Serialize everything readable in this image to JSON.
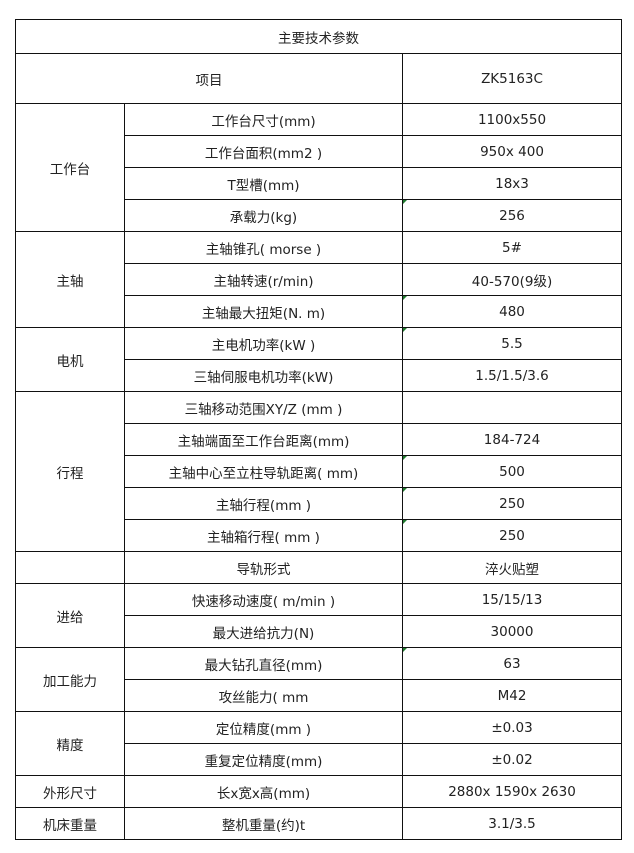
{
  "title": "主要技术参数",
  "header": {
    "item": "项目",
    "model": "ZK5163C"
  },
  "groups": [
    {
      "name": "工作台",
      "rows": [
        {
          "param": "工作台尺寸(mm)",
          "value": "1100x550"
        },
        {
          "param": "工作台面积(mm2 )",
          "value": "950x 400"
        },
        {
          "param": "T型槽(mm)",
          "value": "18x3"
        },
        {
          "param": "承载力(kg)",
          "value": "256"
        }
      ]
    },
    {
      "name": "主轴",
      "rows": [
        {
          "param": "主轴锥孔( morse )",
          "value": "5#"
        },
        {
          "param": "主轴转速(r/min)",
          "value": "40-570(9级)"
        },
        {
          "param": "主轴最大扭矩(N. m)",
          "value": "480"
        }
      ]
    },
    {
      "name": "电机",
      "rows": [
        {
          "param": "主电机功率(kW )",
          "value": "5.5"
        },
        {
          "param": "三轴伺服电机功率(kW)",
          "value": "1.5/1.5/3.6"
        }
      ]
    },
    {
      "name": "行程",
      "rows": [
        {
          "param": "三轴移动范围XY/Z (mm )",
          "value": ""
        },
        {
          "param": "主轴端面至工作台距离(mm)",
          "value": "184-724"
        },
        {
          "param": "主轴中心至立柱导轨距离( mm)",
          "value": "500"
        },
        {
          "param": "主轴行程(mm )",
          "value": "250"
        },
        {
          "param": "主轴箱行程( mm )",
          "value": "250"
        }
      ]
    },
    {
      "name": "",
      "rows": [
        {
          "param": "导轨形式",
          "value": "淬火贴塑"
        }
      ]
    },
    {
      "name": "进给",
      "rows": [
        {
          "param": "快速移动速度( m/min )",
          "value": "15/15/13"
        },
        {
          "param": "最大进给抗力(N)",
          "value": "30000"
        }
      ]
    },
    {
      "name": "加工能力",
      "rows": [
        {
          "param": "最大钻孔直径(mm)",
          "value": "63"
        },
        {
          "param": "攻丝能力( mm",
          "value": "M42"
        }
      ]
    },
    {
      "name": "精度",
      "rows": [
        {
          "param": "定位精度(mm )",
          "value": "±0.03"
        },
        {
          "param": "重复定位精度(mm)",
          "value": "±0.02"
        }
      ]
    },
    {
      "name": "外形尺寸",
      "rows": [
        {
          "param": "长x宽x高(mm)",
          "value": "2880x 1590x 2630"
        }
      ]
    },
    {
      "name": "机床重量",
      "rows": [
        {
          "param": "整机重量(约)t",
          "value": "3.1/3.5"
        }
      ]
    }
  ]
}
